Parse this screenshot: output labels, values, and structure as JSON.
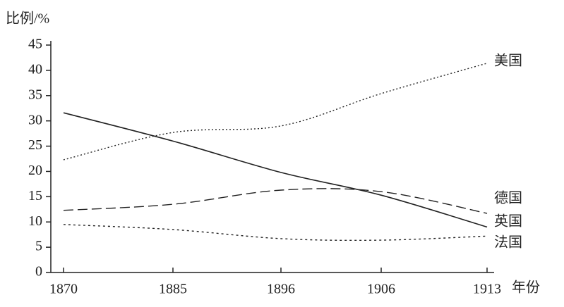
{
  "chart_data": {
    "type": "line",
    "y_label": "比例/%",
    "x_label": "年份",
    "categories": [
      "1870",
      "1885",
      "1896",
      "1906",
      "1913"
    ],
    "series": [
      {
        "name": "美国",
        "color": "#222",
        "style": "dotted",
        "values": [
          22.3,
          27.7,
          29,
          35.4,
          41.4
        ]
      },
      {
        "name": "德国",
        "color": "#222",
        "style": "dashed",
        "values": [
          12.3,
          13.5,
          16.3,
          16,
          11.7
        ]
      },
      {
        "name": "英国",
        "color": "#222",
        "style": "solid",
        "values": [
          31.6,
          26,
          19.8,
          15.3,
          9
        ]
      },
      {
        "name": "法国",
        "color": "#222",
        "style": "dotted-fine",
        "values": [
          9.5,
          8.5,
          6.7,
          6.4,
          7.2
        ]
      }
    ],
    "ylim": [
      0,
      45
    ],
    "yticks": [
      0,
      5,
      10,
      15,
      20,
      25,
      30,
      35,
      40,
      45
    ],
    "grid": false
  }
}
